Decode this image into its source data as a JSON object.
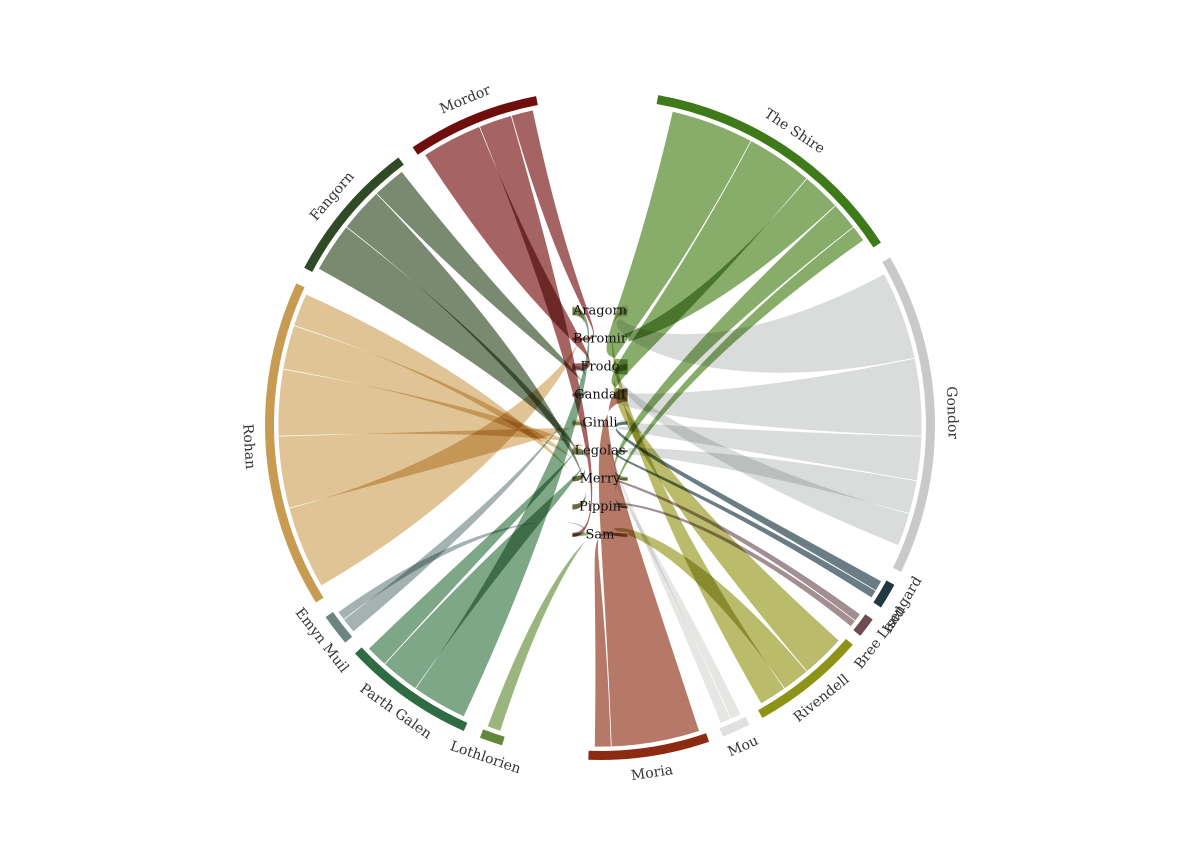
{
  "characters": [
    "Aragorn",
    "Boromir",
    "Frodo",
    "Gandalf",
    "Gimli",
    "Legolas",
    "Merry",
    "Pippin",
    "Sam"
  ],
  "locations": [
    {
      "name": "The Shire",
      "color": "#3f7a1a",
      "fill": "#7ea65e"
    },
    {
      "name": "Gondor",
      "color": "#c8cac8",
      "fill": "#d7d9d8"
    },
    {
      "name": "Isengard",
      "color": "#22373f",
      "fill": "#5e727a"
    },
    {
      "name": "Bree Land",
      "color": "#6e4a52",
      "fill": "#9b868a"
    },
    {
      "name": "Rivendell",
      "color": "#8c9317",
      "fill": "#b4b660"
    },
    {
      "name": "Mou",
      "color": "#e0e1de",
      "fill": "#e4e5e2"
    },
    {
      "name": "Moria",
      "color": "#8c2a12",
      "fill": "#b06e5a"
    },
    {
      "name": "Lothlorien",
      "color": "#62883a",
      "fill": "#93af74"
    },
    {
      "name": "Parth Galen",
      "color": "#2f6b43",
      "fill": "#72a07d"
    },
    {
      "name": "Emyn Muil",
      "color": "#6b8580",
      "fill": "#9cadab"
    },
    {
      "name": "Rohan",
      "color": "#c79c52",
      "fill": "#ddbf8c"
    },
    {
      "name": "Fangorn",
      "color": "#2f4a25",
      "fill": "#6e8064"
    },
    {
      "name": "Mordor",
      "color": "#700d0d",
      "fill": "#9e5656"
    }
  ]
}
